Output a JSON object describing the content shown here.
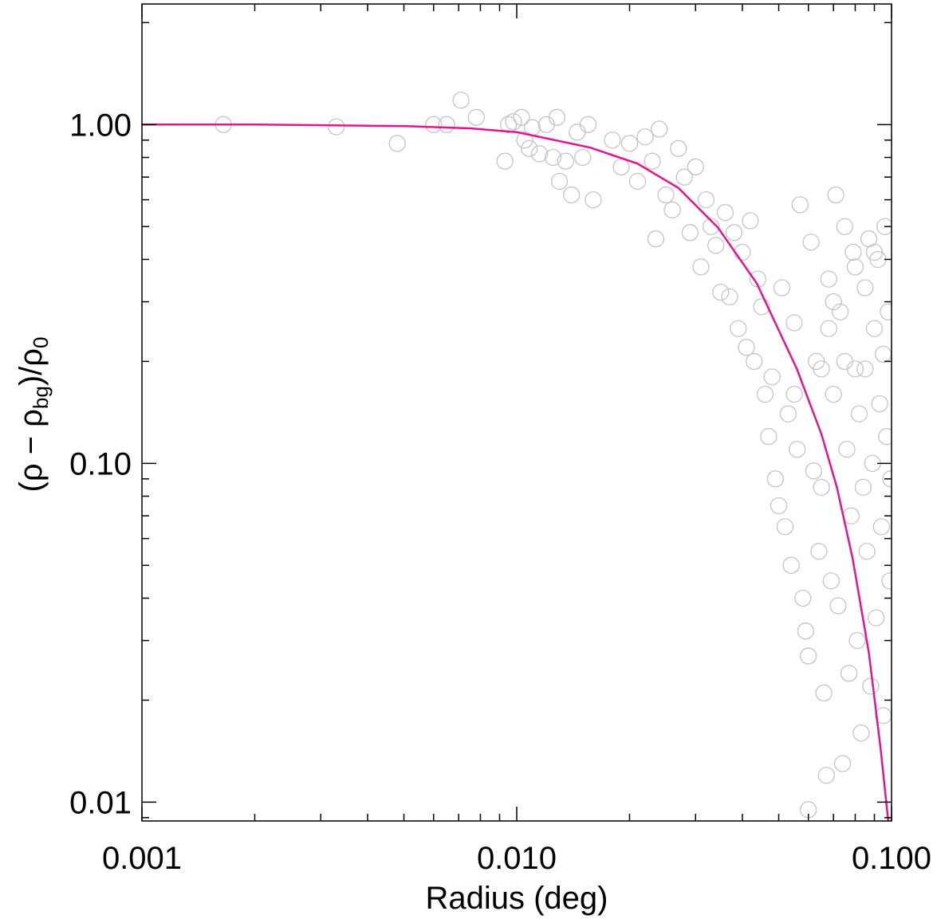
{
  "chart_data": {
    "type": "scatter",
    "x_label": "Radius (deg)",
    "y_label_parts": [
      "(ρ − ρ",
      "bg",
      ")/ρ",
      "0"
    ],
    "xscale": "log",
    "yscale": "log",
    "xlim": [
      0.001,
      0.1
    ],
    "ylim": [
      0.0088,
      2.27
    ],
    "xticks": [
      0.001,
      {
        "value": 0.01,
        "label": "0.010"
      },
      {
        "value": 0.1,
        "label": "0.100"
      }
    ],
    "yticks": [
      0.01,
      {
        "value": 0.1,
        "label": "0.10"
      },
      {
        "value": 1,
        "label": "1.00"
      }
    ],
    "xminorticks": [
      0.002,
      0.003,
      0.004,
      0.005,
      0.006,
      0.007,
      0.008,
      0.009,
      0.02,
      0.03,
      0.04,
      0.05,
      0.06,
      0.07,
      0.08,
      0.09
    ],
    "yminorticks": [
      0.009,
      0.02,
      0.03,
      0.04,
      0.05,
      0.06,
      0.07,
      0.08,
      0.09,
      0.2,
      0.3,
      0.4,
      0.5,
      0.6,
      0.7,
      0.8,
      0.9,
      2
    ],
    "points": {
      "color": "#c4c4c4",
      "x": [
        0.00165,
        0.0033,
        0.0048,
        0.006,
        0.0065,
        0.0071,
        0.0078,
        0.0093,
        0.0095,
        0.0098,
        0.0103,
        0.0105,
        0.0108,
        0.011,
        0.0115,
        0.012,
        0.0125,
        0.0128,
        0.013,
        0.0135,
        0.014,
        0.0145,
        0.015,
        0.0155,
        0.016,
        0.018,
        0.019,
        0.02,
        0.021,
        0.022,
        0.023,
        0.0235,
        0.024,
        0.025,
        0.026,
        0.027,
        0.028,
        0.029,
        0.03,
        0.031,
        0.032,
        0.033,
        0.034,
        0.035,
        0.036,
        0.037,
        0.038,
        0.039,
        0.04,
        0.041,
        0.042,
        0.043,
        0.044,
        0.045,
        0.046,
        0.047,
        0.048,
        0.049,
        0.05,
        0.051,
        0.052,
        0.053,
        0.054,
        0.055,
        0.056,
        0.057,
        0.058,
        0.059,
        0.06,
        0.061,
        0.062,
        0.063,
        0.064,
        0.065,
        0.066,
        0.067,
        0.068,
        0.069,
        0.07,
        0.071,
        0.072,
        0.073,
        0.074,
        0.075,
        0.076,
        0.077,
        0.078,
        0.079,
        0.08,
        0.081,
        0.082,
        0.083,
        0.084,
        0.085,
        0.086,
        0.087,
        0.088,
        0.089,
        0.09,
        0.091,
        0.092,
        0.093,
        0.094,
        0.095,
        0.096,
        0.097,
        0.098,
        0.099,
        0.0995,
        0.06,
        0.055,
        0.065,
        0.075,
        0.085,
        0.095,
        0.08,
        0.09,
        0.07,
        0.068
      ],
      "y": [
        1.0,
        0.985,
        0.88,
        1.0,
        1.0,
        1.18,
        1.05,
        0.78,
        1.0,
        1.02,
        1.05,
        0.9,
        0.85,
        0.98,
        0.82,
        1.0,
        0.8,
        1.05,
        0.68,
        0.78,
        0.62,
        0.95,
        0.8,
        1.0,
        0.6,
        0.9,
        0.75,
        0.88,
        0.68,
        0.92,
        0.78,
        0.46,
        0.97,
        0.62,
        0.56,
        0.85,
        0.7,
        0.48,
        0.75,
        0.38,
        0.6,
        0.5,
        0.44,
        0.32,
        0.55,
        0.31,
        0.48,
        0.25,
        0.42,
        0.22,
        0.52,
        0.2,
        0.35,
        0.29,
        0.16,
        0.12,
        0.18,
        0.09,
        0.075,
        0.33,
        0.065,
        0.14,
        0.05,
        0.26,
        0.11,
        0.58,
        0.04,
        0.032,
        0.027,
        0.45,
        0.095,
        0.2,
        0.055,
        0.085,
        0.021,
        0.012,
        0.35,
        0.045,
        0.16,
        0.62,
        0.038,
        0.28,
        0.013,
        0.5,
        0.11,
        0.024,
        0.07,
        0.42,
        0.19,
        0.03,
        0.14,
        0.016,
        0.085,
        0.33,
        0.055,
        0.46,
        0.022,
        0.1,
        0.25,
        0.035,
        0.4,
        0.15,
        0.065,
        0.018,
        0.5,
        0.12,
        0.28,
        0.045,
        0.09,
        0.0095,
        0.16,
        0.19,
        0.2,
        0.19,
        0.21,
        0.38,
        0.42,
        0.3,
        0.25
      ]
    },
    "fit": {
      "color": "#e0168f",
      "x": [
        0.001,
        0.002,
        0.005,
        0.0075,
        0.01,
        0.0157,
        0.021,
        0.027,
        0.0344,
        0.0437,
        0.0559,
        0.065,
        0.0715,
        0.0787,
        0.087,
        0.0935,
        0.098
      ],
      "y": [
        1.0,
        1.0,
        0.99,
        0.975,
        0.95,
        0.855,
        0.767,
        0.65,
        0.497,
        0.34,
        0.19,
        0.122,
        0.085,
        0.0526,
        0.0276,
        0.0144,
        0.0088
      ]
    }
  }
}
